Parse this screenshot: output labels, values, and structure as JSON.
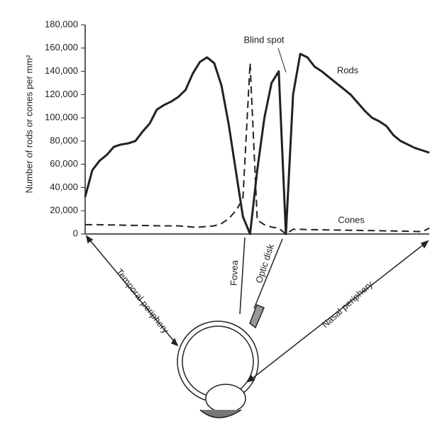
{
  "chart_data": {
    "type": "line",
    "y_label": "Number of rods or cones per mm²",
    "annotations": [
      "Blind spot",
      "Rods",
      "Cones",
      "Temporal periphery",
      "Fovea",
      "Optic disk",
      "Nasal periphery"
    ],
    "categories": [
      null,
      null,
      null,
      null,
      null,
      null,
      null,
      null,
      null,
      null,
      null,
      null,
      null,
      null,
      null,
      null,
      null,
      null,
      null,
      null,
      null,
      null,
      null,
      null,
      null,
      null,
      null,
      null,
      null,
      null,
      null,
      null,
      null,
      null,
      null,
      null,
      null,
      null,
      null,
      null,
      null,
      null,
      null,
      null,
      null,
      null,
      null,
      null,
      null
    ],
    "series": [
      {
        "name": "Rods",
        "color": "#222222",
        "dash": false,
        "values": [
          32000,
          55000,
          63000,
          68000,
          75000,
          77000,
          78000,
          80000,
          88000,
          95000,
          107000,
          111000,
          114000,
          118000,
          124000,
          138000,
          148000,
          152000,
          147000,
          128000,
          95000,
          55000,
          15000,
          0,
          55000,
          100000,
          130000,
          140000,
          0,
          120000,
          155000,
          152000,
          144000,
          140000,
          135000,
          130000,
          125000,
          120000,
          113000,
          106000,
          100000,
          97000,
          93000,
          85000,
          80000,
          77000,
          74000,
          72000,
          70000
        ]
      },
      {
        "name": "Cones",
        "color": "#222222",
        "dash": true,
        "values": [
          8000,
          8000,
          8000,
          7800,
          7800,
          7600,
          7500,
          7400,
          7300,
          7200,
          7100,
          7000,
          7000,
          7000,
          6500,
          6000,
          6000,
          6500,
          7000,
          9000,
          13000,
          20000,
          30000,
          147000,
          12000,
          8000,
          6000,
          5000,
          0,
          4000,
          4000,
          3800,
          3700,
          3600,
          3500,
          3400,
          3300,
          3200,
          3100,
          3000,
          2900,
          2800,
          2700,
          2600,
          2500,
          2400,
          2200,
          2000,
          5000
        ]
      }
    ],
    "ylim": [
      0,
      180000
    ],
    "yticks": [
      0,
      {
        "value": 20000,
        "label": "20,000"
      },
      {
        "value": 40000,
        "label": "40,000"
      },
      {
        "value": 60000,
        "label": "60,000"
      },
      {
        "value": 80000,
        "label": "80,000"
      },
      {
        "value": 100000,
        "label": "100,000"
      },
      {
        "value": 120000,
        "label": "120,000"
      },
      {
        "value": 140000,
        "label": "140,000"
      },
      {
        "value": 160000,
        "label": "160,000"
      },
      {
        "value": 180000,
        "label": "180,000"
      }
    ],
    "grid": false
  }
}
